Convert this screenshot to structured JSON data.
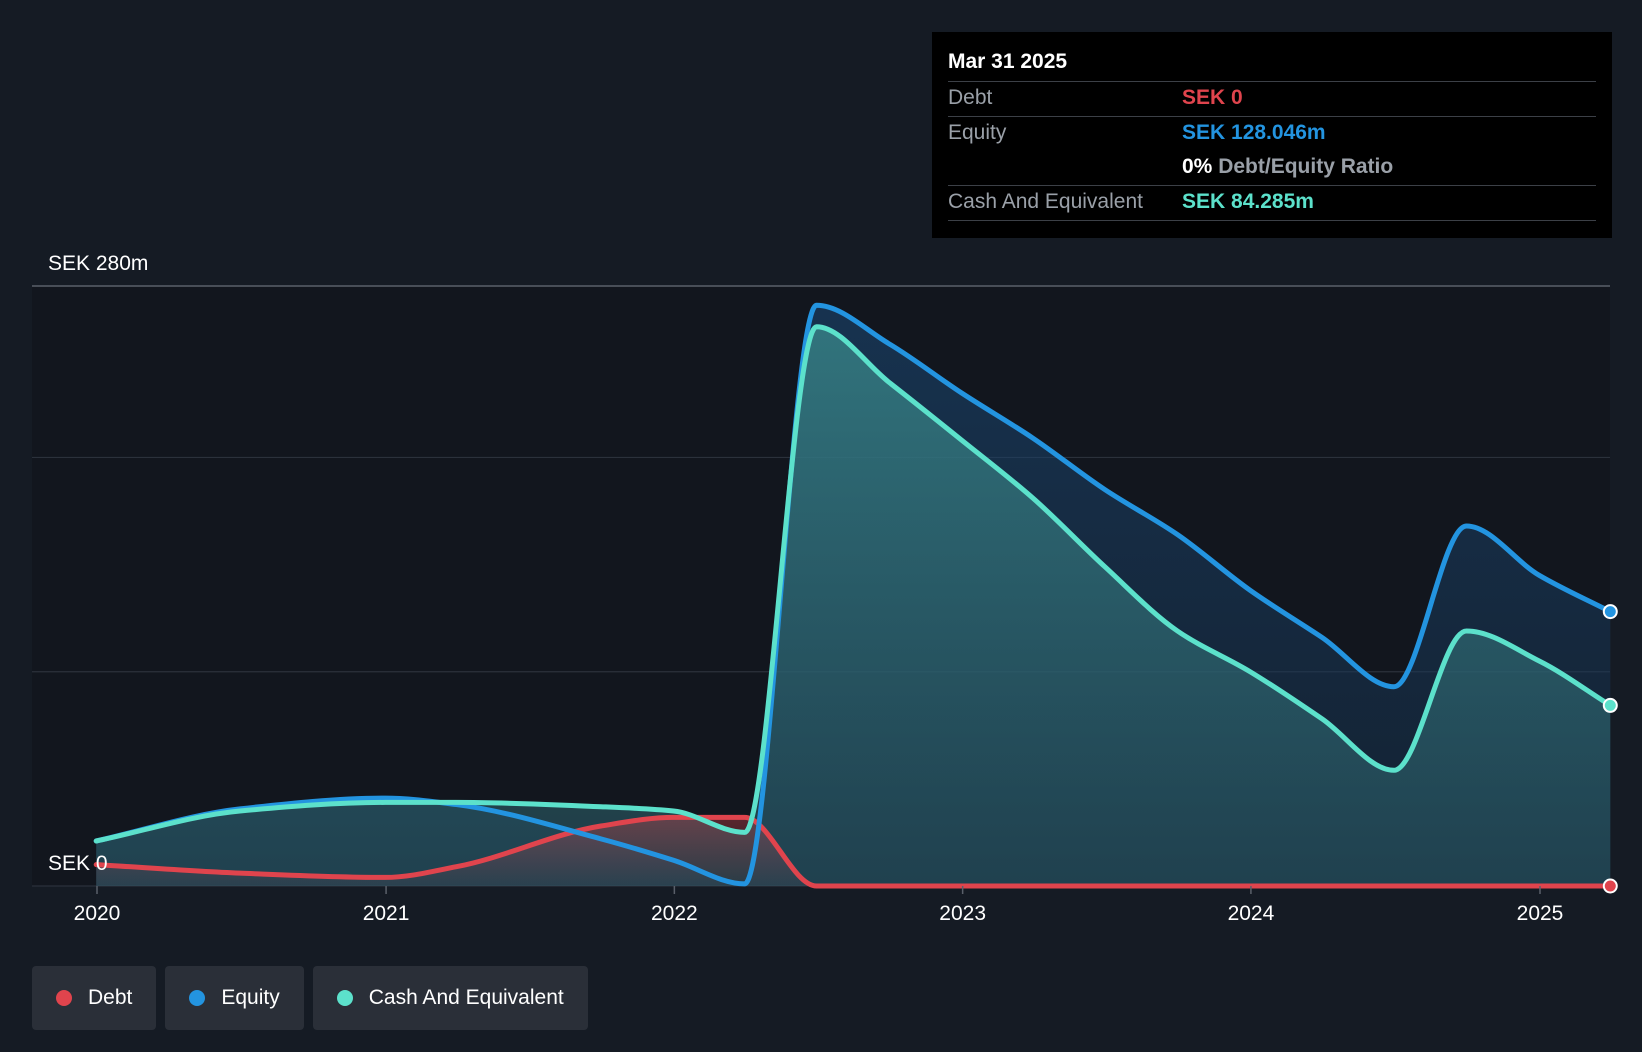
{
  "chart_data": {
    "type": "area",
    "x_ticks": [
      "2020",
      "2021",
      "2022",
      "2023",
      "2024",
      "2025"
    ],
    "y_axis": {
      "max_label": "SEK 280m",
      "min_label": "SEK 0",
      "range": [
        0,
        280
      ]
    },
    "x_range": [
      "2019-10-01",
      "2025-03-31"
    ],
    "gridlines": [
      280,
      200,
      100,
      0
    ],
    "series": [
      {
        "name": "Debt",
        "color": "#e0444d",
        "points": [
          [
            "2019-12-31",
            10
          ],
          [
            "2020-06-30",
            6
          ],
          [
            "2020-12-31",
            4
          ],
          [
            "2021-03-31",
            9
          ],
          [
            "2021-09-30",
            28
          ],
          [
            "2021-12-31",
            32
          ],
          [
            "2022-03-31",
            32
          ],
          [
            "2022-06-30",
            0
          ],
          [
            "2022-09-30",
            0
          ],
          [
            "2023-12-31",
            0
          ],
          [
            "2024-12-31",
            0
          ],
          [
            "2025-03-31",
            0
          ]
        ]
      },
      {
        "name": "Equity",
        "color": "#2394e0",
        "points": [
          [
            "2019-12-31",
            21
          ],
          [
            "2020-06-30",
            36
          ],
          [
            "2020-12-31",
            41
          ],
          [
            "2021-03-31",
            38
          ],
          [
            "2021-09-30",
            22
          ],
          [
            "2021-12-31",
            12
          ],
          [
            "2022-03-31",
            1
          ],
          [
            "2022-06-30",
            271
          ],
          [
            "2022-09-30",
            253
          ],
          [
            "2022-12-31",
            230
          ],
          [
            "2023-03-31",
            209
          ],
          [
            "2023-06-30",
            185
          ],
          [
            "2023-09-30",
            164
          ],
          [
            "2023-12-31",
            138
          ],
          [
            "2024-03-31",
            116
          ],
          [
            "2024-06-30",
            93
          ],
          [
            "2024-09-30",
            168
          ],
          [
            "2024-12-31",
            145
          ],
          [
            "2025-03-31",
            128.046
          ]
        ]
      },
      {
        "name": "Cash And Equivalent",
        "color": "#5ce1cb",
        "points": [
          [
            "2019-12-31",
            21
          ],
          [
            "2020-06-30",
            35
          ],
          [
            "2020-12-31",
            39
          ],
          [
            "2021-03-31",
            39
          ],
          [
            "2021-09-30",
            37
          ],
          [
            "2021-12-31",
            35
          ],
          [
            "2022-03-31",
            25
          ],
          [
            "2022-06-30",
            261
          ],
          [
            "2022-09-30",
            235
          ],
          [
            "2022-12-31",
            208
          ],
          [
            "2023-03-31",
            181
          ],
          [
            "2023-06-30",
            149
          ],
          [
            "2023-09-30",
            119
          ],
          [
            "2023-12-31",
            100
          ],
          [
            "2024-03-31",
            78
          ],
          [
            "2024-06-30",
            54
          ],
          [
            "2024-09-30",
            119
          ],
          [
            "2024-12-31",
            105
          ],
          [
            "2025-03-31",
            84.285
          ]
        ]
      }
    ]
  },
  "tooltip": {
    "date": "Mar 31 2025",
    "debt_label": "Debt",
    "debt_value": "SEK 0",
    "equity_label": "Equity",
    "equity_value": "SEK 128.046m",
    "ratio_percent": "0%",
    "ratio_label": "Debt/Equity Ratio",
    "cash_label": "Cash And Equivalent",
    "cash_value": "SEK 84.285m",
    "colors": {
      "debt": "#e0444d",
      "equity": "#2394e0",
      "cash": "#5ce1cb"
    }
  },
  "legend": [
    {
      "label": "Debt",
      "color": "#e0444d"
    },
    {
      "label": "Equity",
      "color": "#2394e0"
    },
    {
      "label": "Cash And Equivalent",
      "color": "#5ce1cb"
    }
  ]
}
